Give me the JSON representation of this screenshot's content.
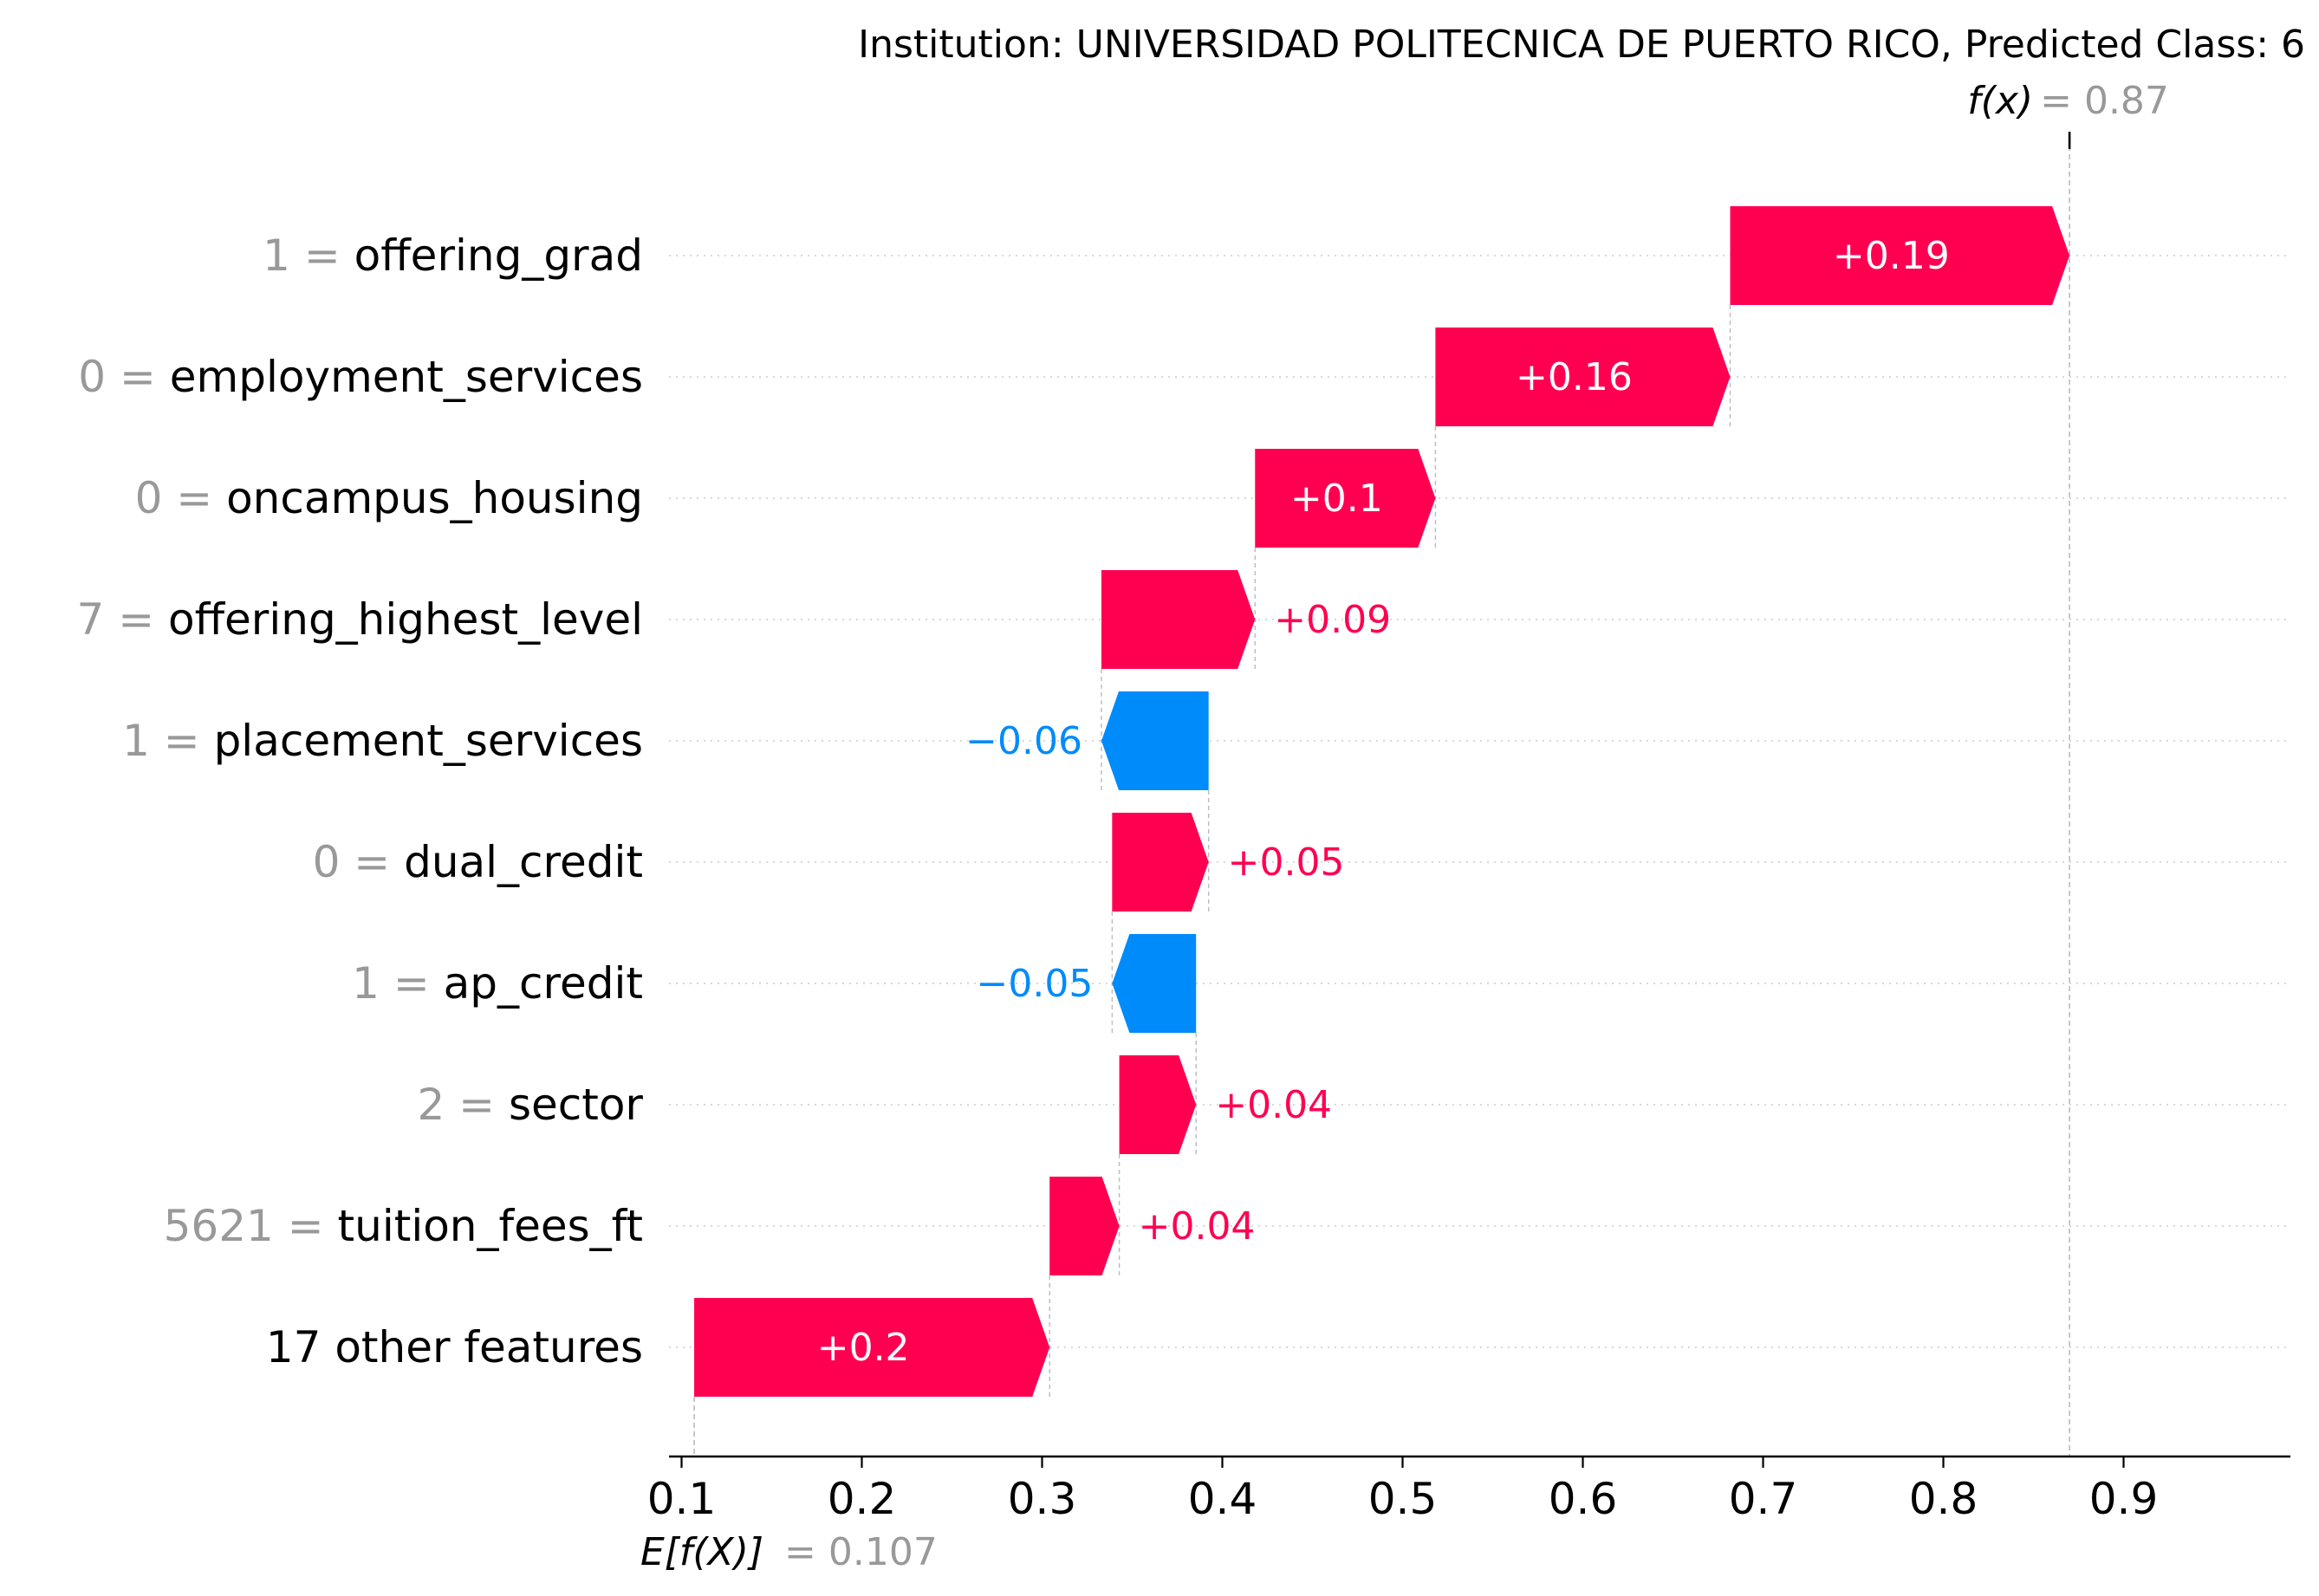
{
  "chart_data": {
    "type": "waterfall",
    "title": "Institution: UNIVERSIDAD POLITECNICA DE PUERTO RICO, Predicted Class: 6",
    "base_value": 0.107,
    "base_value_label": "0.107",
    "output_value": 0.87,
    "output_value_label": "0.87",
    "fx_label": "f(x)",
    "efx_label": "E[f(X)]",
    "xlim": [
      0.1,
      1.0
    ],
    "x_ticks": [
      0.1,
      0.2,
      0.3,
      0.4,
      0.5,
      0.6,
      0.7,
      0.8,
      0.9
    ],
    "x_tick_labels": [
      "0.1",
      "0.2",
      "0.3",
      "0.4",
      "0.5",
      "0.6",
      "0.7",
      "0.8",
      "0.9"
    ],
    "grid": "horizontal dotted",
    "features": [
      {
        "value": "1",
        "name": "offering_grad",
        "contribution": 0.19,
        "label": "+0.19"
      },
      {
        "value": "0",
        "name": "employment_services",
        "contribution": 0.165,
        "label": "+0.16"
      },
      {
        "value": "0",
        "name": "oncampus_housing",
        "contribution": 0.101,
        "label": "+0.1"
      },
      {
        "value": "7",
        "name": "offering_highest_level",
        "contribution": 0.086,
        "label": "+0.09"
      },
      {
        "value": "1",
        "name": "placement_services",
        "contribution": -0.06,
        "label": "−0.06"
      },
      {
        "value": "0",
        "name": "dual_credit",
        "contribution": 0.054,
        "label": "+0.05"
      },
      {
        "value": "1",
        "name": "ap_credit",
        "contribution": -0.047,
        "label": "−0.05"
      },
      {
        "value": "2",
        "name": "sector",
        "contribution": 0.043,
        "label": "+0.04"
      },
      {
        "value": "5621",
        "name": "tuition_fees_ft",
        "contribution": 0.039,
        "label": "+0.04"
      },
      {
        "value": "",
        "name": "17 other features",
        "contribution": 0.199,
        "label": "+0.2"
      }
    ],
    "colors": {
      "positive": "#ff0051",
      "negative": "#008bfb",
      "muted": "#999999",
      "text": "#000000"
    }
  }
}
